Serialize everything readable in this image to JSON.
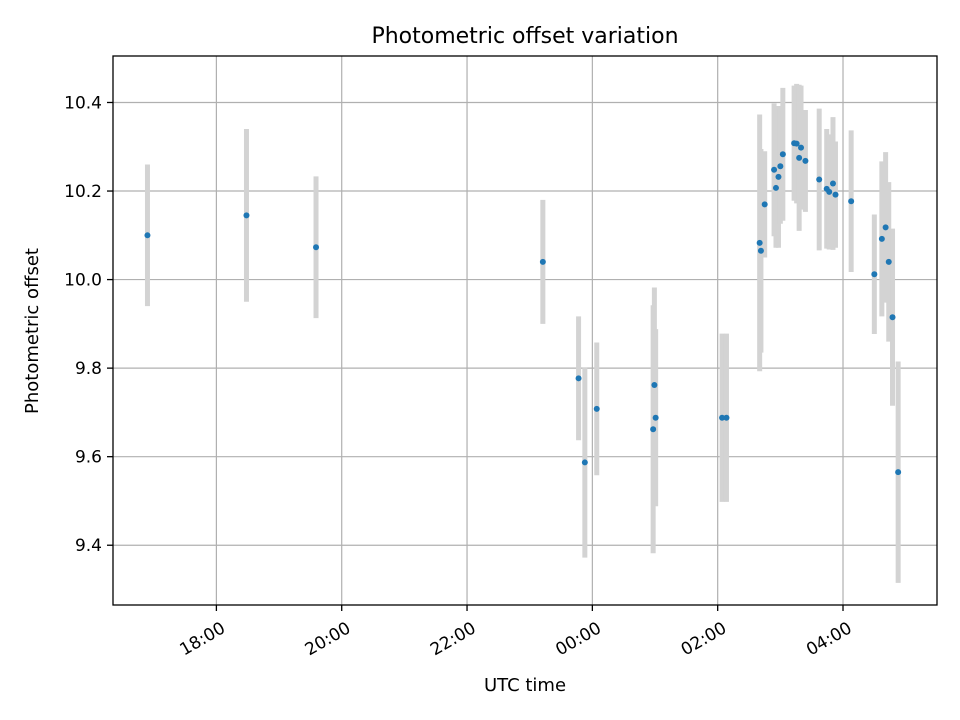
{
  "chart_data": {
    "type": "scatter",
    "title": "Photometric offset variation",
    "xlabel": "UTC time",
    "ylabel": "Photometric offset",
    "grid": true,
    "x_unit": "hours since 16:00 UTC",
    "xlim": [
      0.35,
      13.5
    ],
    "ylim": [
      9.265,
      10.505
    ],
    "x_ticks": [
      {
        "value": 2,
        "label": "18:00"
      },
      {
        "value": 4,
        "label": "20:00"
      },
      {
        "value": 6,
        "label": "22:00"
      },
      {
        "value": 8,
        "label": "00:00"
      },
      {
        "value": 10,
        "label": "02:00"
      },
      {
        "value": 12,
        "label": "04:00"
      }
    ],
    "y_ticks": [
      {
        "value": 9.4,
        "label": "9.4"
      },
      {
        "value": 9.6,
        "label": "9.6"
      },
      {
        "value": 9.8,
        "label": "9.8"
      },
      {
        "value": 10.0,
        "label": "10.0"
      },
      {
        "value": 10.2,
        "label": "10.2"
      },
      {
        "value": 10.4,
        "label": "10.4"
      }
    ],
    "colors": {
      "point": "#1f77b4",
      "errorbar": "#d3d3d3"
    },
    "points": [
      {
        "x": 0.9,
        "y": 10.1,
        "err": 0.16
      },
      {
        "x": 2.48,
        "y": 10.145,
        "err": 0.195
      },
      {
        "x": 3.59,
        "y": 10.073,
        "err": 0.16
      },
      {
        "x": 7.21,
        "y": 10.04,
        "err": 0.14
      },
      {
        "x": 7.78,
        "y": 9.777,
        "err": 0.14
      },
      {
        "x": 7.88,
        "y": 9.587,
        "err": 0.215
      },
      {
        "x": 8.07,
        "y": 9.708,
        "err": 0.15
      },
      {
        "x": 8.97,
        "y": 9.662,
        "err": 0.28
      },
      {
        "x": 8.99,
        "y": 9.762,
        "err": 0.22
      },
      {
        "x": 9.01,
        "y": 9.688,
        "err": 0.2
      },
      {
        "x": 10.07,
        "y": 9.688,
        "err": 0.19
      },
      {
        "x": 10.14,
        "y": 9.688,
        "err": 0.19
      },
      {
        "x": 10.67,
        "y": 10.083,
        "err": 0.29
      },
      {
        "x": 10.69,
        "y": 10.065,
        "err": 0.23
      },
      {
        "x": 10.75,
        "y": 10.17,
        "err": 0.12
      },
      {
        "x": 10.9,
        "y": 10.248,
        "err": 0.15
      },
      {
        "x": 10.93,
        "y": 10.207,
        "err": 0.135
      },
      {
        "x": 10.97,
        "y": 10.232,
        "err": 0.16
      },
      {
        "x": 11.0,
        "y": 10.256,
        "err": 0.13
      },
      {
        "x": 11.04,
        "y": 10.283,
        "err": 0.15
      },
      {
        "x": 11.22,
        "y": 10.308,
        "err": 0.13
      },
      {
        "x": 11.26,
        "y": 10.307,
        "err": 0.135
      },
      {
        "x": 11.3,
        "y": 10.275,
        "err": 0.165
      },
      {
        "x": 11.33,
        "y": 10.298,
        "err": 0.14
      },
      {
        "x": 11.4,
        "y": 10.268,
        "err": 0.115
      },
      {
        "x": 11.62,
        "y": 10.226,
        "err": 0.16
      },
      {
        "x": 11.74,
        "y": 10.205,
        "err": 0.135
      },
      {
        "x": 11.78,
        "y": 10.198,
        "err": 0.13
      },
      {
        "x": 11.84,
        "y": 10.217,
        "err": 0.15
      },
      {
        "x": 11.88,
        "y": 10.192,
        "err": 0.12
      },
      {
        "x": 12.13,
        "y": 10.177,
        "err": 0.16
      },
      {
        "x": 12.5,
        "y": 10.012,
        "err": 0.135
      },
      {
        "x": 12.62,
        "y": 10.092,
        "err": 0.175
      },
      {
        "x": 12.68,
        "y": 10.118,
        "err": 0.17
      },
      {
        "x": 12.73,
        "y": 10.04,
        "err": 0.18
      },
      {
        "x": 12.79,
        "y": 9.915,
        "err": 0.2
      },
      {
        "x": 12.88,
        "y": 9.565,
        "err": 0.25
      }
    ]
  }
}
